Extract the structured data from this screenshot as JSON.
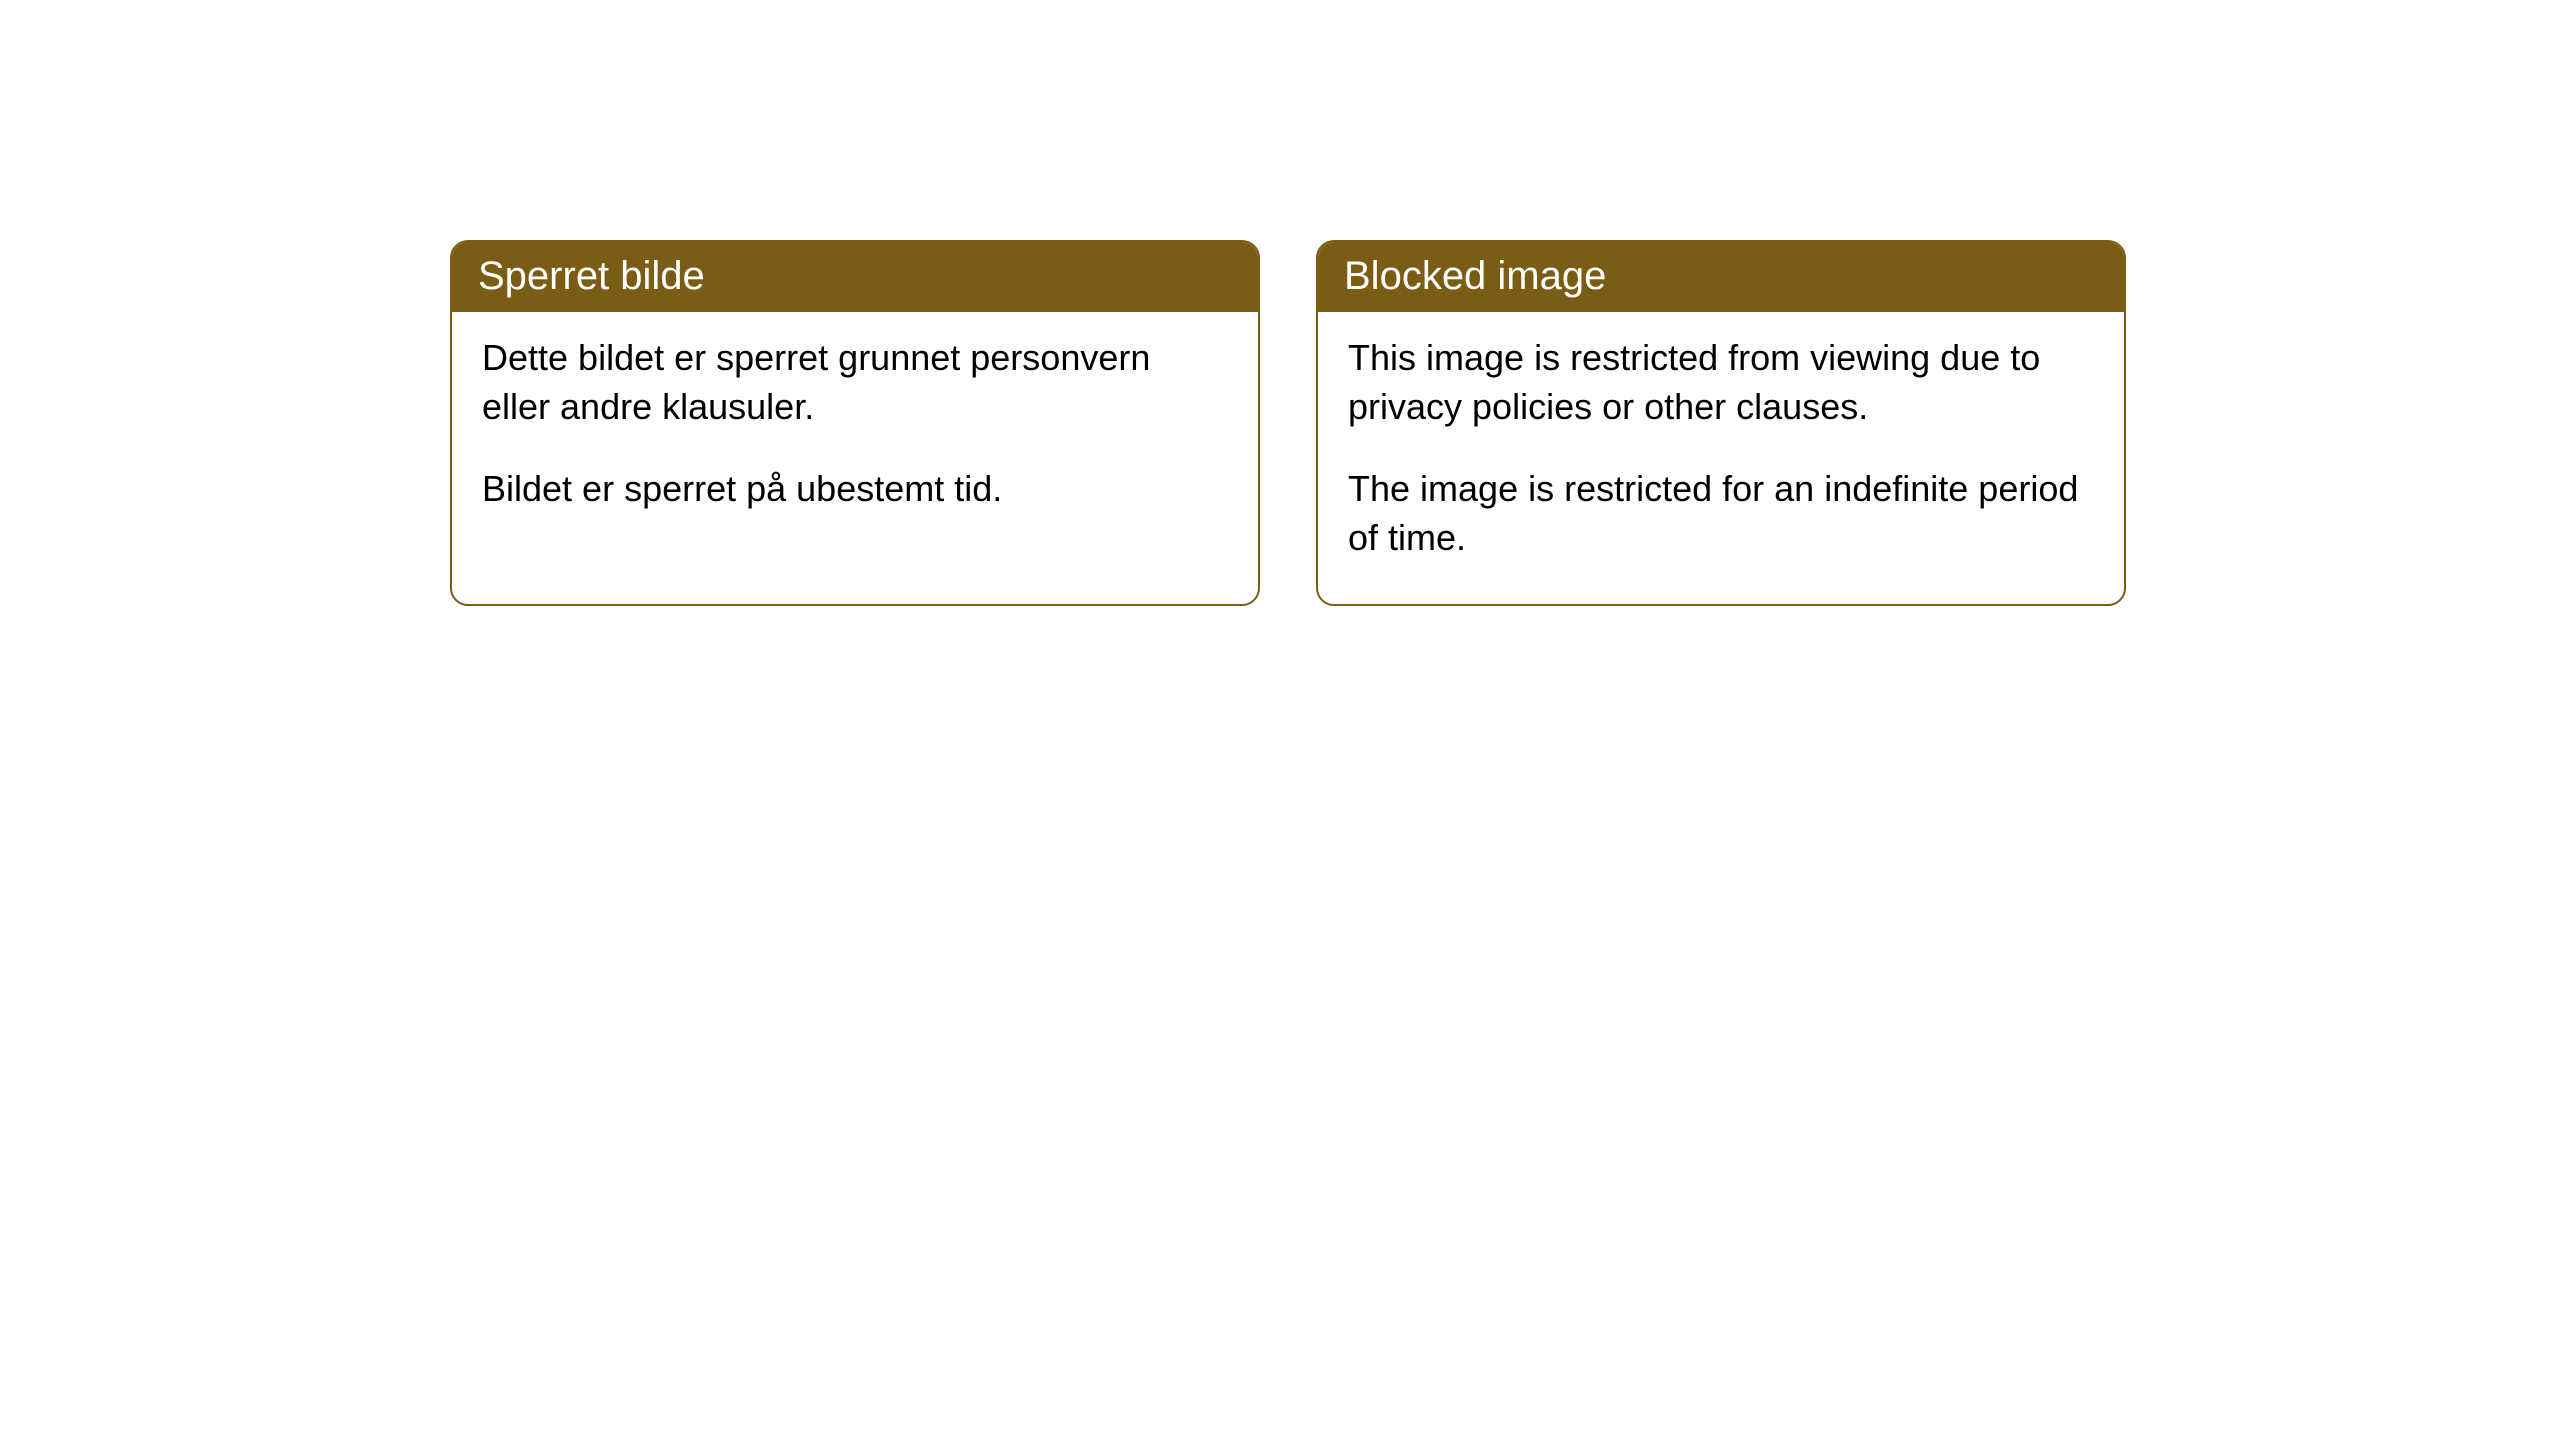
{
  "cards": [
    {
      "title": "Sperret bilde",
      "paragraph1": "Dette bildet er sperret grunnet personvern eller andre klausuler.",
      "paragraph2": "Bildet er sperret på ubestemt tid."
    },
    {
      "title": "Blocked image",
      "paragraph1": "This image is restricted from viewing due to privacy policies or other clauses.",
      "paragraph2": "The image is restricted for an indefinite period of time."
    }
  ],
  "style": {
    "header_bg": "#7a5c14",
    "header_text_color": "#ffffff",
    "border_color": "#7a5c14",
    "body_text_color": "#000000",
    "background_color": "#ffffff",
    "border_radius": 18,
    "header_fontsize": 40,
    "body_fontsize": 36
  }
}
